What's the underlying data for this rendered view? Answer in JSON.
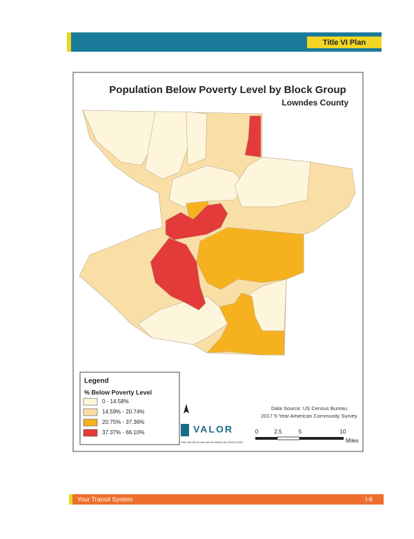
{
  "header": {
    "title": "Title VI Plan"
  },
  "map": {
    "title": "Population Below Poverty Level by Block Group",
    "subtitle": "Lowndes County",
    "legend": {
      "title": "Legend",
      "subtitle": "% Below Poverty Level",
      "items": [
        {
          "label": "0 - 14.58%",
          "color": "#fdf5dc"
        },
        {
          "label": "14.59% - 20.74%",
          "color": "#f9dfa6"
        },
        {
          "label": "20.75% - 37.36%",
          "color": "#f6b21e"
        },
        {
          "label": "37.37% - 66.10%",
          "color": "#e33a3a"
        }
      ]
    },
    "source": [
      "Data Source: US Census Bureau",
      "2017 5-Year American Community Survey"
    ],
    "logo": "VALOR",
    "logo_tagline": "Visit VALOR on the web at WWW.VALORUS.COM",
    "scale": {
      "labels": [
        "0",
        "2.5",
        "5",
        "10"
      ],
      "unit": "Miles"
    }
  },
  "footer": {
    "left": "Your Transit System",
    "right": "I-6"
  }
}
